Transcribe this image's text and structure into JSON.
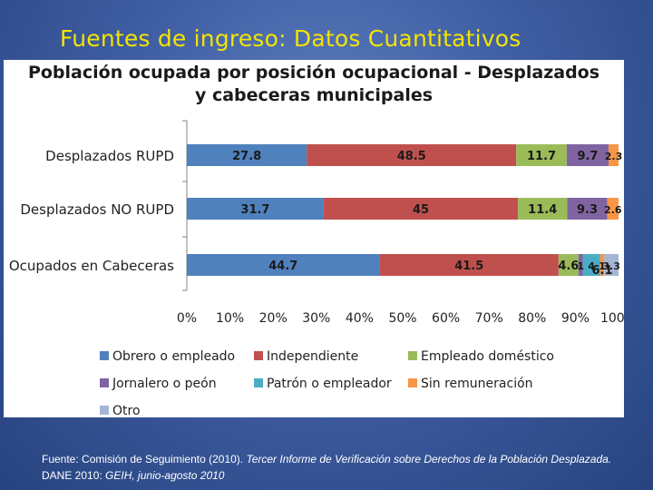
{
  "slide": {
    "title": "Fuentes de ingreso: Datos Cuantitativos"
  },
  "footer": {
    "lead": "Fuente: Comisión de Seguimiento (2010). ",
    "italic": "Tercer Informe de Verificación sobre Derechos de la Población Desplazada.",
    "rest": " DANE 2010: ",
    "italic2": "GEIH, junio-agosto 2010"
  },
  "chart_data": {
    "type": "bar",
    "orientation": "horizontal",
    "stacked": "percent",
    "title_line1": "Población ocupada por posición ocupacional - Desplazados",
    "title_line2": "y cabeceras municipales",
    "categories": [
      "Desplazados RUPD",
      "Desplazados NO RUPD",
      "Ocupados en Cabeceras"
    ],
    "series": [
      {
        "name": "Obrero o empleado",
        "color": "#4f81bd",
        "values": [
          27.8,
          31.7,
          44.7
        ],
        "labels": [
          "27.8",
          "31.7",
          "44.7"
        ]
      },
      {
        "name": "Independiente",
        "color": "#c0504d",
        "values": [
          48.5,
          45,
          41.5
        ],
        "labels": [
          "48.5",
          "45",
          "41.5"
        ]
      },
      {
        "name": "Empleado doméstico",
        "color": "#9bbb59",
        "values": [
          11.7,
          11.4,
          4.6
        ],
        "labels": [
          "11.7",
          "11.4",
          "4.6"
        ]
      },
      {
        "name": "Jornalero o peón",
        "color": "#8064a2",
        "values": [
          9.7,
          9.3,
          1
        ],
        "labels": [
          "9.7",
          "9.3",
          "1"
        ]
      },
      {
        "name": "Patrón o empleador",
        "color": "#4bacc6",
        "values": [
          0,
          0,
          4
        ],
        "labels": [
          "",
          "",
          "4"
        ]
      },
      {
        "name": "Sin remuneración",
        "color": "#f79646",
        "values": [
          2.3,
          2.6,
          1
        ],
        "labels": [
          "2.3",
          "2.6",
          "1"
        ]
      },
      {
        "name": "Otro",
        "color": "#a5b6d4",
        "values": [
          0,
          0,
          3.3
        ],
        "labels": [
          "",
          "",
          "3.3"
        ]
      }
    ],
    "extra_label": "6.1",
    "xlim": [
      0,
      100
    ],
    "xticks": [
      "0%",
      "10%",
      "20%",
      "30%",
      "40%",
      "50%",
      "60%",
      "70%",
      "80%",
      "90%",
      "100%"
    ],
    "legend_position": "bottom"
  }
}
